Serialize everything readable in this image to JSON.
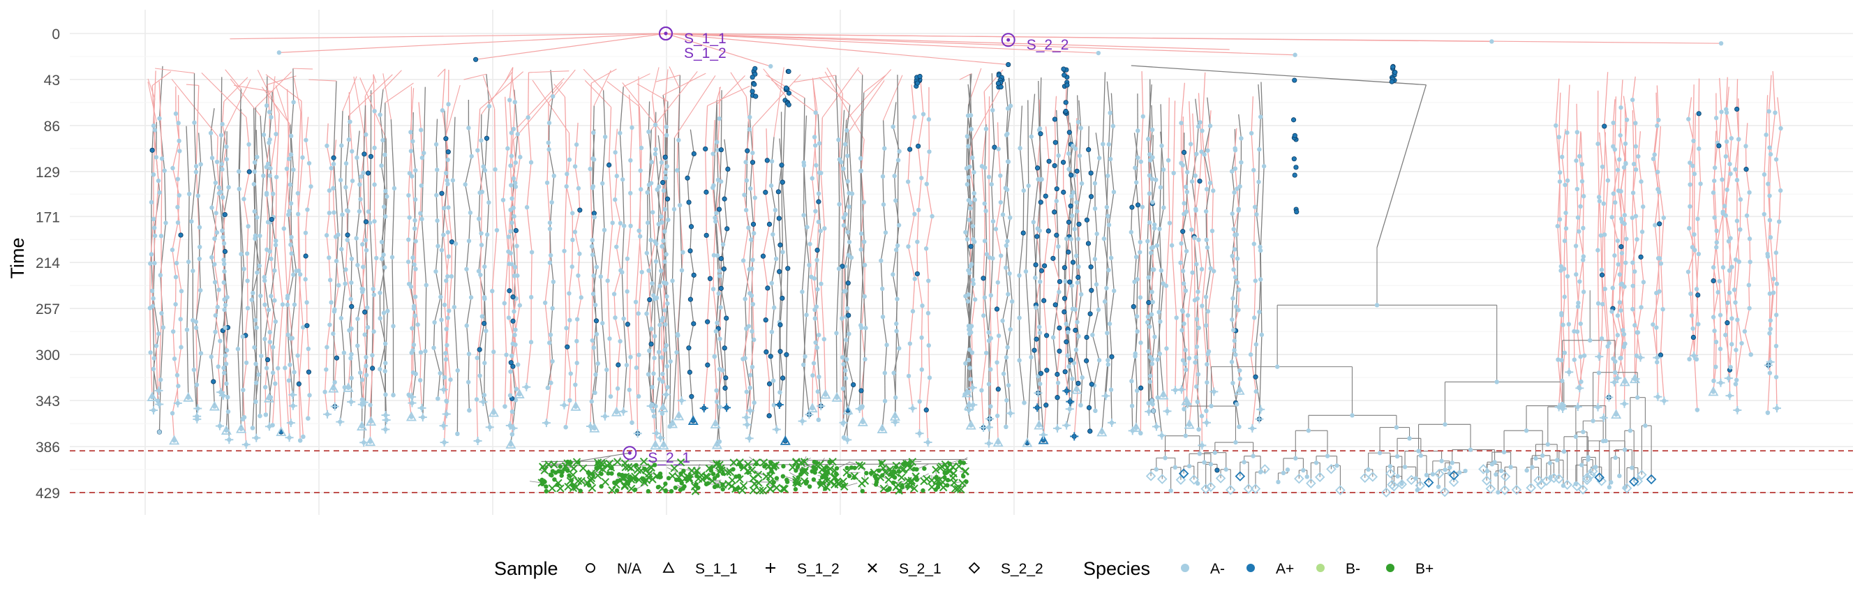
{
  "chart_data": {
    "type": "scatter",
    "subtype": "phylogenetic-tree",
    "title": "",
    "xlabel": "",
    "ylabel": "Time",
    "y_reversed": true,
    "ylim": [
      0,
      429
    ],
    "xlim": [
      0,
      100
    ],
    "y_ticks": [
      0,
      43,
      86,
      129,
      171,
      214,
      257,
      300,
      343,
      386,
      429
    ],
    "sampling_lines": [
      390,
      429
    ],
    "edge_colors": {
      "vertical_transmission": "#7f7f7f",
      "transfer": "#f4a4a4"
    },
    "species": [
      {
        "label": "A-",
        "color": "#a6cee3"
      },
      {
        "label": "A+",
        "color": "#1f78b4"
      },
      {
        "label": "B-",
        "color": "#b2df8a"
      },
      {
        "label": "B+",
        "color": "#33a02c"
      }
    ],
    "samples": [
      {
        "label": "N/A",
        "shape": "circle"
      },
      {
        "label": "S_1_1",
        "shape": "triangle"
      },
      {
        "label": "S_1_2",
        "shape": "plus"
      },
      {
        "label": "S_2_1",
        "shape": "cross"
      },
      {
        "label": "S_2_2",
        "shape": "diamond"
      }
    ],
    "annotations": [
      {
        "label": "S_1_1",
        "x": 31.6,
        "y": 0,
        "label_dy": 6
      },
      {
        "label": "S_1_2",
        "x": 31.6,
        "y": 0,
        "label_dy": 27
      },
      {
        "label": "S_2_2",
        "x": 52.5,
        "y": 6,
        "label_dy": 6
      },
      {
        "label": "S_2_1",
        "x": 29.4,
        "y": 392,
        "label_dy": 6
      }
    ],
    "legend": {
      "position": "bottom",
      "sample_title": "Sample",
      "species_title": "Species"
    }
  }
}
